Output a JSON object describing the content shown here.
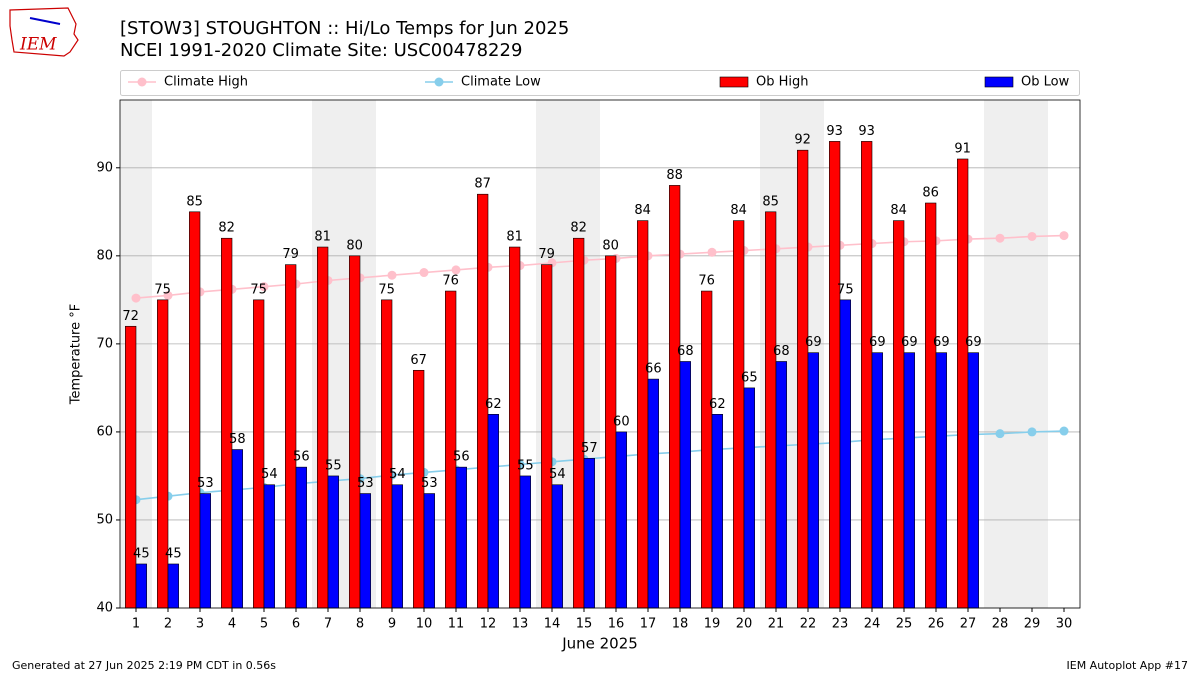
{
  "logo": "IEM",
  "footer_left": "Generated at 27 Jun 2025 2:19 PM CDT in 0.56s",
  "footer_right": "IEM Autoplot App #17",
  "chart_data": {
    "type": "bar",
    "title": "[STOW3] STOUGHTON :: Hi/Lo Temps for Jun 2025",
    "subtitle": "NCEI 1991-2020 Climate Site: USC00478229",
    "xlabel": "June 2025",
    "ylabel": "Temperature °F",
    "x": [
      1,
      2,
      3,
      4,
      5,
      6,
      7,
      8,
      9,
      10,
      11,
      12,
      13,
      14,
      15,
      16,
      17,
      18,
      19,
      20,
      21,
      22,
      23,
      24,
      25,
      26,
      27,
      28,
      29,
      30
    ],
    "xlim": [
      0.5,
      30.5
    ],
    "xticks": [
      1,
      2,
      3,
      4,
      5,
      6,
      7,
      8,
      9,
      10,
      11,
      12,
      13,
      14,
      15,
      16,
      17,
      18,
      19,
      20,
      21,
      22,
      23,
      24,
      25,
      26,
      27,
      28,
      29,
      30
    ],
    "ylim": [
      40,
      97.7
    ],
    "yticks": [
      40,
      50,
      60,
      70,
      80,
      90
    ],
    "grid": true,
    "legend": "top",
    "shaded_days": [
      1,
      7,
      8,
      14,
      15,
      21,
      22,
      28,
      29
    ],
    "shade_color": "#efefef",
    "series": [
      {
        "name": "Climate High",
        "style": "line",
        "color": "#ffc0cb",
        "values": [
          75.2,
          75.5,
          75.9,
          76.2,
          76.5,
          76.8,
          77.2,
          77.5,
          77.8,
          78.1,
          78.4,
          78.7,
          78.9,
          79.2,
          79.5,
          79.7,
          80.0,
          80.2,
          80.4,
          80.6,
          80.8,
          81.0,
          81.2,
          81.4,
          81.6,
          81.7,
          81.9,
          82.0,
          82.2,
          82.3
        ]
      },
      {
        "name": "Climate Low",
        "style": "line",
        "color": "#87ceeb",
        "values": [
          52.3,
          52.7,
          53.1,
          53.4,
          53.7,
          54.1,
          54.4,
          54.7,
          55.1,
          55.4,
          55.7,
          56.0,
          56.3,
          56.6,
          56.9,
          57.2,
          57.5,
          57.7,
          58.0,
          58.2,
          58.4,
          58.6,
          58.8,
          59.1,
          59.3,
          59.5,
          59.7,
          59.8,
          60.0,
          60.1
        ]
      },
      {
        "name": "Ob High",
        "style": "bar",
        "color": "#ff0000",
        "values": [
          72,
          75,
          85,
          82,
          75,
          79,
          81,
          80,
          75,
          67,
          76,
          87,
          81,
          79,
          82,
          80,
          84,
          88,
          76,
          84,
          85,
          92,
          93,
          93,
          84,
          86,
          91,
          null,
          null,
          null
        ]
      },
      {
        "name": "Ob Low",
        "style": "bar",
        "color": "#0000ff",
        "values": [
          45,
          45,
          53,
          58,
          54,
          56,
          55,
          53,
          54,
          53,
          56,
          62,
          55,
          54,
          57,
          60,
          66,
          68,
          62,
          65,
          68,
          69,
          75,
          69,
          69,
          69,
          69,
          null,
          null,
          null
        ]
      }
    ]
  }
}
